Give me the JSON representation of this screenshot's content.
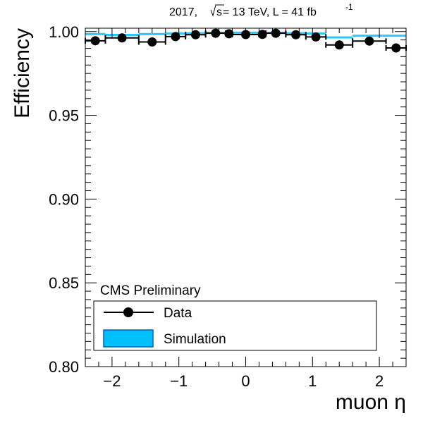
{
  "chart_data": {
    "type": "scatter",
    "header": {
      "year": "2017,",
      "sqrt_s": "s",
      "energy": " = 13 TeV, L = 41 fb",
      "exponent": "-1"
    },
    "xlabel": "muon η",
    "ylabel": "Efficiency",
    "xlim": [
      -2.4,
      2.4
    ],
    "ylim": [
      0.8,
      1.002
    ],
    "x_ticks": [
      -2,
      -1,
      0,
      1,
      2
    ],
    "x_tick_labels": [
      "−2",
      "−1",
      "0",
      "1",
      "2"
    ],
    "y_ticks": [
      0.8,
      0.85,
      0.9,
      0.95,
      1.0
    ],
    "y_tick_labels": [
      "0.80",
      "0.85",
      "0.90",
      "0.95",
      "1.00"
    ],
    "grid": false,
    "legend": {
      "position": "bottom-left",
      "header": "CMS Preliminary",
      "entries": [
        "Data",
        "Simulation"
      ]
    },
    "bin_edges": [
      -2.4,
      -2.1,
      -1.6,
      -1.2,
      -0.9,
      -0.6,
      -0.3,
      -0.2,
      0.2,
      0.3,
      0.6,
      0.9,
      1.2,
      1.6,
      2.1,
      2.4
    ],
    "series": [
      {
        "name": "Data",
        "style": "markers-with-x-errors",
        "color": "#000000",
        "values": [
          0.9945,
          0.9962,
          0.9938,
          0.997,
          0.9981,
          0.999,
          0.9987,
          0.9982,
          0.9983,
          0.999,
          0.9981,
          0.9968,
          0.992,
          0.9943,
          0.9902
        ]
      },
      {
        "name": "Simulation",
        "style": "band",
        "color": "#00bfff",
        "values": [
          0.9985,
          0.998,
          0.9985,
          0.9988,
          0.999,
          0.9993,
          0.9993,
          0.9993,
          0.9993,
          0.9993,
          0.999,
          0.9988,
          0.9965,
          0.9975,
          0.9975
        ]
      }
    ]
  }
}
